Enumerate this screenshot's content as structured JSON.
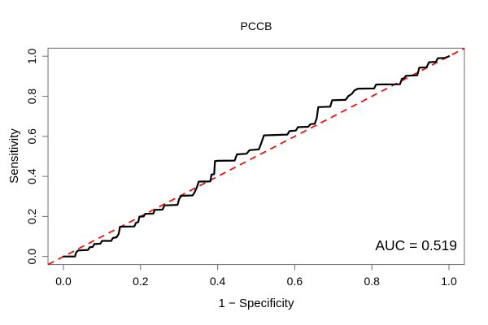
{
  "figure": {
    "title": "PCCB",
    "xlabel": "1 − Specificity",
    "ylabel": "Sensitivity",
    "auc_label": "AUC = 0.519"
  },
  "chart_data": {
    "type": "line",
    "subtype": "roc-step-curve",
    "title": "PCCB",
    "xlabel": "1 − Specificity",
    "ylabel": "Sensitivity",
    "xlim": [
      -0.04,
      1.04
    ],
    "ylim": [
      -0.04,
      1.04
    ],
    "grid": false,
    "x_ticks": {
      "values": [
        0.0,
        0.2,
        0.4,
        0.6,
        0.8,
        1.0
      ],
      "labels": [
        "0.0",
        "0.2",
        "0.4",
        "0.6",
        "0.8",
        "1.0"
      ]
    },
    "y_ticks": {
      "values": [
        0.0,
        0.2,
        0.4,
        0.6,
        0.8,
        1.0
      ],
      "labels": [
        "0.0",
        "0.2",
        "0.4",
        "0.6",
        "0.8",
        "1.0"
      ]
    },
    "auc": 0.519,
    "annotations": [
      {
        "text": "AUC = 0.519",
        "position": "bottom-right"
      }
    ],
    "reference_line": {
      "type": "diagonal-identity",
      "style": "dashed",
      "color": "#ff0000",
      "width": 1.7
    },
    "colors": {
      "curve": "#000000",
      "reference": "#ff0000",
      "box": "#7a7a7a",
      "text": "#000000",
      "background": "#ffffff"
    },
    "series": [
      {
        "name": "ROC curve",
        "color": "#000000",
        "stroke_width": 2.2,
        "points": [
          [
            0.0,
            0.0
          ],
          [
            0.03,
            0.0
          ],
          [
            0.033,
            0.02
          ],
          [
            0.038,
            0.03
          ],
          [
            0.064,
            0.033
          ],
          [
            0.068,
            0.046
          ],
          [
            0.076,
            0.048
          ],
          [
            0.08,
            0.062
          ],
          [
            0.096,
            0.064
          ],
          [
            0.1,
            0.078
          ],
          [
            0.124,
            0.078
          ],
          [
            0.128,
            0.092
          ],
          [
            0.138,
            0.096
          ],
          [
            0.143,
            0.112
          ],
          [
            0.147,
            0.149
          ],
          [
            0.184,
            0.15
          ],
          [
            0.188,
            0.168
          ],
          [
            0.194,
            0.172
          ],
          [
            0.197,
            0.199
          ],
          [
            0.208,
            0.2
          ],
          [
            0.212,
            0.213
          ],
          [
            0.233,
            0.214
          ],
          [
            0.237,
            0.233
          ],
          [
            0.257,
            0.234
          ],
          [
            0.262,
            0.255
          ],
          [
            0.296,
            0.258
          ],
          [
            0.3,
            0.287
          ],
          [
            0.306,
            0.303
          ],
          [
            0.335,
            0.305
          ],
          [
            0.34,
            0.32
          ],
          [
            0.346,
            0.345
          ],
          [
            0.351,
            0.374
          ],
          [
            0.381,
            0.375
          ],
          [
            0.384,
            0.409
          ],
          [
            0.391,
            0.411
          ],
          [
            0.393,
            0.476
          ],
          [
            0.4,
            0.478
          ],
          [
            0.444,
            0.479
          ],
          [
            0.45,
            0.51
          ],
          [
            0.475,
            0.513
          ],
          [
            0.483,
            0.531
          ],
          [
            0.507,
            0.535
          ],
          [
            0.514,
            0.57
          ],
          [
            0.52,
            0.605
          ],
          [
            0.581,
            0.609
          ],
          [
            0.586,
            0.626
          ],
          [
            0.603,
            0.629
          ],
          [
            0.608,
            0.646
          ],
          [
            0.635,
            0.648
          ],
          [
            0.641,
            0.661
          ],
          [
            0.652,
            0.663
          ],
          [
            0.657,
            0.69
          ],
          [
            0.661,
            0.746
          ],
          [
            0.692,
            0.748
          ],
          [
            0.697,
            0.78
          ],
          [
            0.732,
            0.782
          ],
          [
            0.739,
            0.801
          ],
          [
            0.748,
            0.812
          ],
          [
            0.754,
            0.828
          ],
          [
            0.764,
            0.838
          ],
          [
            0.806,
            0.839
          ],
          [
            0.811,
            0.859
          ],
          [
            0.873,
            0.86
          ],
          [
            0.878,
            0.888
          ],
          [
            0.884,
            0.89
          ],
          [
            0.888,
            0.902
          ],
          [
            0.918,
            0.905
          ],
          [
            0.923,
            0.943
          ],
          [
            0.942,
            0.945
          ],
          [
            0.948,
            0.97
          ],
          [
            0.966,
            0.972
          ],
          [
            0.971,
            0.99
          ],
          [
            0.99,
            0.992
          ],
          [
            1.0,
            1.0
          ]
        ]
      }
    ]
  }
}
